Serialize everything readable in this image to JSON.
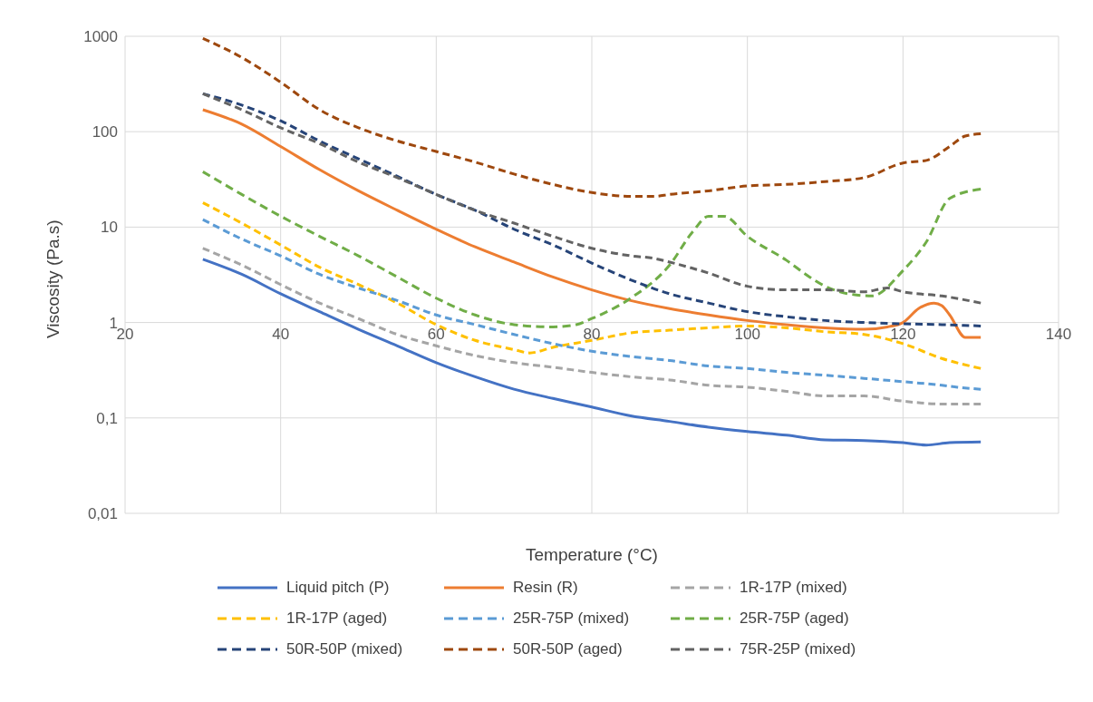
{
  "chart_data": {
    "type": "line",
    "xlabel": "Temperature (°C)",
    "ylabel": "Viscosity (Pa.s)",
    "log": "y",
    "grid": true,
    "legend": "bottom",
    "marker": "none",
    "xlim": [
      20,
      140
    ],
    "xticks": [
      20,
      40,
      60,
      80,
      100,
      120,
      140
    ],
    "ylim": [
      0.01,
      1000
    ],
    "yticks": [
      {
        "value": 0.01,
        "label": "0,01"
      },
      {
        "value": 0.1,
        "label": "0,1"
      },
      1,
      10,
      100,
      1000
    ],
    "series": [
      {
        "name": "Liquid pitch (P)",
        "color": "#4472c4",
        "line_style": "solid",
        "x": [
          30,
          35,
          40,
          45,
          50,
          55,
          60,
          65,
          70,
          75,
          80,
          85,
          90,
          95,
          100,
          105,
          110,
          115,
          120,
          123,
          126,
          130
        ],
        "values": [
          4.6,
          3.2,
          2.0,
          1.3,
          0.85,
          0.57,
          0.38,
          0.27,
          0.2,
          0.16,
          0.13,
          0.105,
          0.092,
          0.08,
          0.072,
          0.066,
          0.059,
          0.058,
          0.055,
          0.052,
          0.055,
          0.056
        ]
      },
      {
        "name": "Resin (R)",
        "color": "#ed7d31",
        "line_style": "solid",
        "x": [
          30,
          35,
          40,
          45,
          50,
          55,
          60,
          65,
          70,
          75,
          80,
          85,
          90,
          95,
          100,
          105,
          110,
          115,
          118,
          120,
          122,
          124,
          125,
          126,
          128,
          130
        ],
        "values": [
          170,
          120,
          70,
          40,
          24,
          15,
          9.5,
          6.2,
          4.3,
          3.0,
          2.2,
          1.7,
          1.4,
          1.2,
          1.05,
          0.95,
          0.88,
          0.85,
          0.9,
          1.0,
          1.4,
          1.6,
          1.5,
          1.2,
          0.7,
          0.7
        ]
      },
      {
        "name": "1R-17P (mixed)",
        "color": "#a5a5a5",
        "line_style": "dashed",
        "x": [
          30,
          35,
          40,
          45,
          50,
          55,
          60,
          65,
          70,
          75,
          80,
          85,
          90,
          95,
          100,
          105,
          110,
          115,
          120,
          125,
          130
        ],
        "values": [
          6,
          4,
          2.5,
          1.6,
          1.1,
          0.75,
          0.57,
          0.45,
          0.38,
          0.34,
          0.3,
          0.27,
          0.25,
          0.22,
          0.21,
          0.19,
          0.17,
          0.17,
          0.15,
          0.14,
          0.14
        ]
      },
      {
        "name": "1R-17P (aged)",
        "color": "#ffc000",
        "line_style": "dashed",
        "x": [
          30,
          35,
          40,
          45,
          50,
          55,
          60,
          65,
          70,
          72,
          75,
          80,
          85,
          90,
          95,
          100,
          105,
          110,
          115,
          120,
          125,
          130
        ],
        "values": [
          18,
          11,
          6.5,
          3.8,
          2.5,
          1.6,
          0.95,
          0.65,
          0.52,
          0.48,
          0.55,
          0.65,
          0.78,
          0.83,
          0.88,
          0.92,
          0.88,
          0.8,
          0.75,
          0.6,
          0.42,
          0.33
        ]
      },
      {
        "name": "25R-75P (mixed)",
        "color": "#5b9bd5",
        "line_style": "dashed",
        "x": [
          30,
          35,
          40,
          45,
          50,
          55,
          60,
          65,
          70,
          75,
          80,
          85,
          90,
          95,
          100,
          105,
          110,
          115,
          120,
          125,
          127,
          130
        ],
        "values": [
          12,
          7.5,
          5,
          3.2,
          2.3,
          1.7,
          1.2,
          0.95,
          0.75,
          0.6,
          0.5,
          0.44,
          0.4,
          0.35,
          0.33,
          0.3,
          0.28,
          0.26,
          0.24,
          0.22,
          0.21,
          0.2
        ]
      },
      {
        "name": "25R-75P (aged)",
        "color": "#70ad47",
        "line_style": "dashed",
        "x": [
          30,
          35,
          40,
          45,
          50,
          55,
          60,
          65,
          70,
          75,
          78,
          80,
          85,
          90,
          93,
          95,
          97,
          100,
          105,
          108,
          110,
          113,
          116,
          120,
          123,
          126,
          130
        ],
        "values": [
          38,
          22,
          13,
          8,
          5,
          3,
          1.8,
          1.2,
          0.95,
          0.9,
          0.95,
          1.1,
          1.8,
          4,
          9,
          13,
          13,
          8,
          4.5,
          3,
          2.4,
          2,
          1.9,
          3.5,
          7,
          20,
          25
        ]
      },
      {
        "name": "50R-50P (mixed)",
        "color": "#264478",
        "line_style": "dashed",
        "x": [
          30,
          35,
          40,
          45,
          50,
          55,
          60,
          65,
          70,
          75,
          80,
          85,
          90,
          95,
          100,
          105,
          110,
          115,
          120,
          125,
          130
        ],
        "values": [
          250,
          190,
          130,
          80,
          52,
          34,
          22,
          15,
          9.5,
          6.5,
          4.2,
          2.8,
          2,
          1.6,
          1.3,
          1.15,
          1.05,
          1.0,
          0.97,
          0.95,
          0.92
        ]
      },
      {
        "name": "50R-50P (aged)",
        "color": "#9e480e",
        "line_style": "dashed",
        "x": [
          30,
          35,
          40,
          45,
          50,
          55,
          60,
          65,
          70,
          75,
          80,
          85,
          88,
          90,
          95,
          100,
          105,
          110,
          115,
          120,
          123,
          126,
          128,
          130
        ],
        "values": [
          950,
          600,
          330,
          170,
          110,
          80,
          62,
          48,
          36,
          28,
          23,
          21,
          21,
          22,
          24,
          27,
          28,
          30,
          33,
          47,
          50,
          70,
          90,
          95
        ]
      },
      {
        "name": "75R-25P (mixed)",
        "color": "#636363",
        "line_style": "dashed",
        "x": [
          30,
          35,
          40,
          45,
          50,
          55,
          60,
          65,
          70,
          75,
          80,
          85,
          88,
          90,
          95,
          100,
          105,
          110,
          115,
          118,
          120,
          125,
          130
        ],
        "values": [
          250,
          170,
          110,
          75,
          48,
          33,
          22,
          15,
          11,
          8,
          6,
          5,
          4.7,
          4.3,
          3.3,
          2.4,
          2.2,
          2.2,
          2.1,
          2.3,
          2.1,
          1.9,
          1.6
        ]
      }
    ]
  }
}
